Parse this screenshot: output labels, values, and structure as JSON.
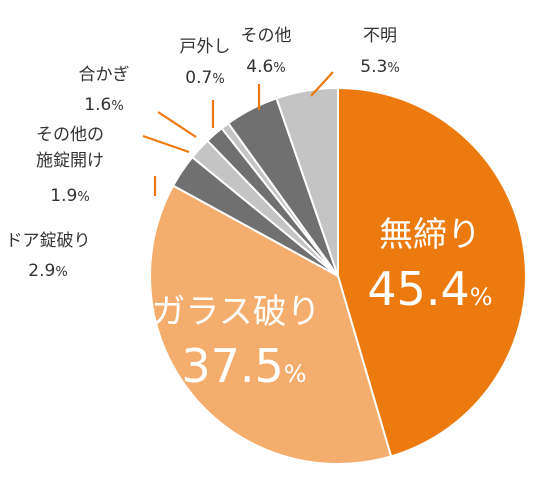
{
  "chart_data": {
    "type": "pie",
    "unit": "%",
    "start_angle_deg": 0,
    "direction": "clockwise",
    "slices": [
      {
        "label": "無締り",
        "value": 45.4,
        "color": "#ec7a0e",
        "label_position": "inside"
      },
      {
        "label": "ガラス破り",
        "value": 37.5,
        "color": "#f4ad6c",
        "label_position": "inside"
      },
      {
        "label": "ドア錠破り",
        "value": 2.9,
        "color": "#707070",
        "label_position": "outside",
        "leader_color": "#ec7a0e"
      },
      {
        "label": "その他の\n施錠開け",
        "value": 1.9,
        "color": "#c4c4c4",
        "label_position": "outside",
        "leader_color": "#ec7a0e"
      },
      {
        "label": "合かぎ",
        "value": 1.6,
        "color": "#707070",
        "label_position": "outside",
        "leader_color": "#ec7a0e"
      },
      {
        "label": "戸外し",
        "value": 0.7,
        "color": "#c4c4c4",
        "label_position": "outside",
        "leader_color": "#ec7a0e"
      },
      {
        "label": "その他",
        "value": 4.6,
        "color": "#707070",
        "label_position": "outside",
        "leader_color": "#ec7a0e"
      },
      {
        "label": "不明",
        "value": 5.3,
        "color": "#c4c4c4",
        "label_position": "outside",
        "leader_color": "#ec7a0e"
      }
    ]
  }
}
